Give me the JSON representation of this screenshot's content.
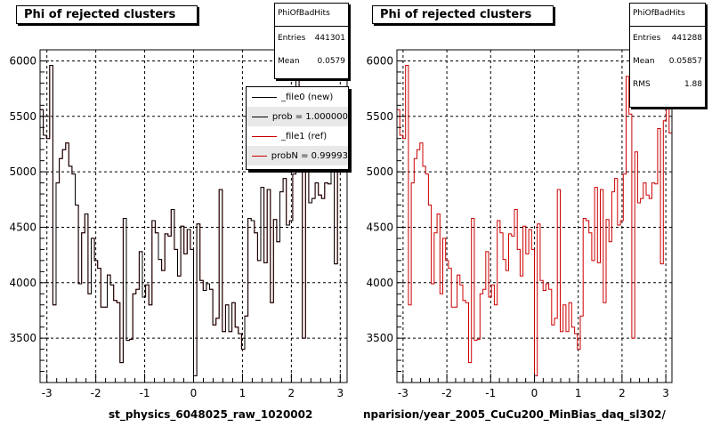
{
  "chart_data": [
    {
      "type": "line",
      "title": "Phi of rejected clusters",
      "xlabel": "st_physics_6048025_raw_1020002",
      "ylabel": "",
      "xlim": [
        -3.14,
        3.14
      ],
      "ylim": [
        3100,
        6100
      ],
      "x_ticks": [
        -3,
        -2,
        -1,
        0,
        1,
        2,
        3
      ],
      "y_ticks": [
        3500,
        4000,
        4500,
        5000,
        5500,
        6000
      ],
      "grid": true,
      "legend_position": "top-right",
      "stats": {
        "name": "PhiOfBadHits",
        "entries_label": "Entries",
        "entries": "441301",
        "mean_label": "Mean",
        "mean": "0.0579"
      },
      "legend": [
        {
          "label": "_file0 (new)",
          "color": "#000000",
          "shaded": false
        },
        {
          "label": "prob = 1.000000",
          "color": "#000000",
          "shaded": true
        },
        {
          "label": "_file1 (ref)",
          "color": "#cc0000",
          "shaded": false
        },
        {
          "label": "probN = 0.99993",
          "color": "#cc0000",
          "shaded": true
        }
      ],
      "series": [
        {
          "name": "_file0 (new)",
          "color": "#000000"
        },
        {
          "name": "_file1 (ref)",
          "color": "#cc0000"
        }
      ],
      "values": [
        5560,
        5330,
        5300,
        5960,
        3800,
        4900,
        5120,
        5200,
        5260,
        5050,
        4980,
        4700,
        3990,
        4450,
        4620,
        3900,
        4400,
        4200,
        4130,
        3780,
        3780,
        4070,
        3980,
        3840,
        3820,
        3280,
        4580,
        3480,
        3490,
        3900,
        3940,
        4280,
        3870,
        3980,
        3800,
        4560,
        4450,
        4210,
        4110,
        4440,
        4420,
        4660,
        4300,
        4060,
        4510,
        4260,
        4480,
        4300,
        3160,
        4530,
        4020,
        3930,
        3990,
        3940,
        3620,
        3680,
        4840,
        3560,
        3800,
        3560,
        3820,
        3600,
        3540,
        3400,
        3700,
        4580,
        4560,
        4450,
        4200,
        4860,
        4180,
        4840,
        3820,
        4570,
        4370,
        4820,
        4940,
        4520,
        4560,
        4980,
        5860,
        5520,
        3500,
        5180,
        4720,
        4760,
        4900,
        4790,
        4760,
        4900,
        4890,
        5390,
        4170,
        5460,
        5580,
        5350
      ]
    },
    {
      "type": "line",
      "title": "Phi of rejected clusters",
      "xlabel": "nparision/year_2005_CuCu200_MinBias_daq_sl302/",
      "ylabel": "",
      "xlim": [
        -3.14,
        3.14
      ],
      "ylim": [
        3100,
        6100
      ],
      "x_ticks": [
        -3,
        -2,
        -1,
        0,
        1,
        2,
        3
      ],
      "y_ticks": [
        3500,
        4000,
        4500,
        5000,
        5500,
        6000
      ],
      "grid": true,
      "stats": {
        "name": "PhiOfBadHits",
        "entries_label": "Entries",
        "entries": "441288",
        "mean_label": "Mean",
        "mean": "0.05857",
        "rms_label": "RMS",
        "rms": "1.88"
      },
      "series": [
        {
          "name": "_file1 (ref)",
          "color": "#cc0000"
        }
      ],
      "values": [
        5560,
        5330,
        5300,
        5960,
        3800,
        4900,
        5120,
        5200,
        5260,
        5050,
        4980,
        4700,
        3990,
        4450,
        4620,
        3900,
        4400,
        4200,
        4130,
        3780,
        3780,
        4070,
        3980,
        3840,
        3820,
        3280,
        4580,
        3480,
        3490,
        3900,
        3940,
        4280,
        3870,
        3980,
        3800,
        4560,
        4450,
        4210,
        4110,
        4440,
        4420,
        4660,
        4300,
        4060,
        4510,
        4260,
        4480,
        4300,
        3160,
        4530,
        4020,
        3930,
        3990,
        3940,
        3620,
        3680,
        4840,
        3560,
        3800,
        3560,
        3820,
        3600,
        3540,
        3400,
        3700,
        4580,
        4560,
        4450,
        4200,
        4860,
        4180,
        4840,
        3820,
        4570,
        4370,
        4820,
        4940,
        4520,
        4560,
        4980,
        5860,
        5520,
        3500,
        5180,
        4720,
        4760,
        4900,
        4790,
        4760,
        4900,
        4890,
        5390,
        4170,
        5460,
        5580,
        5350
      ]
    }
  ]
}
